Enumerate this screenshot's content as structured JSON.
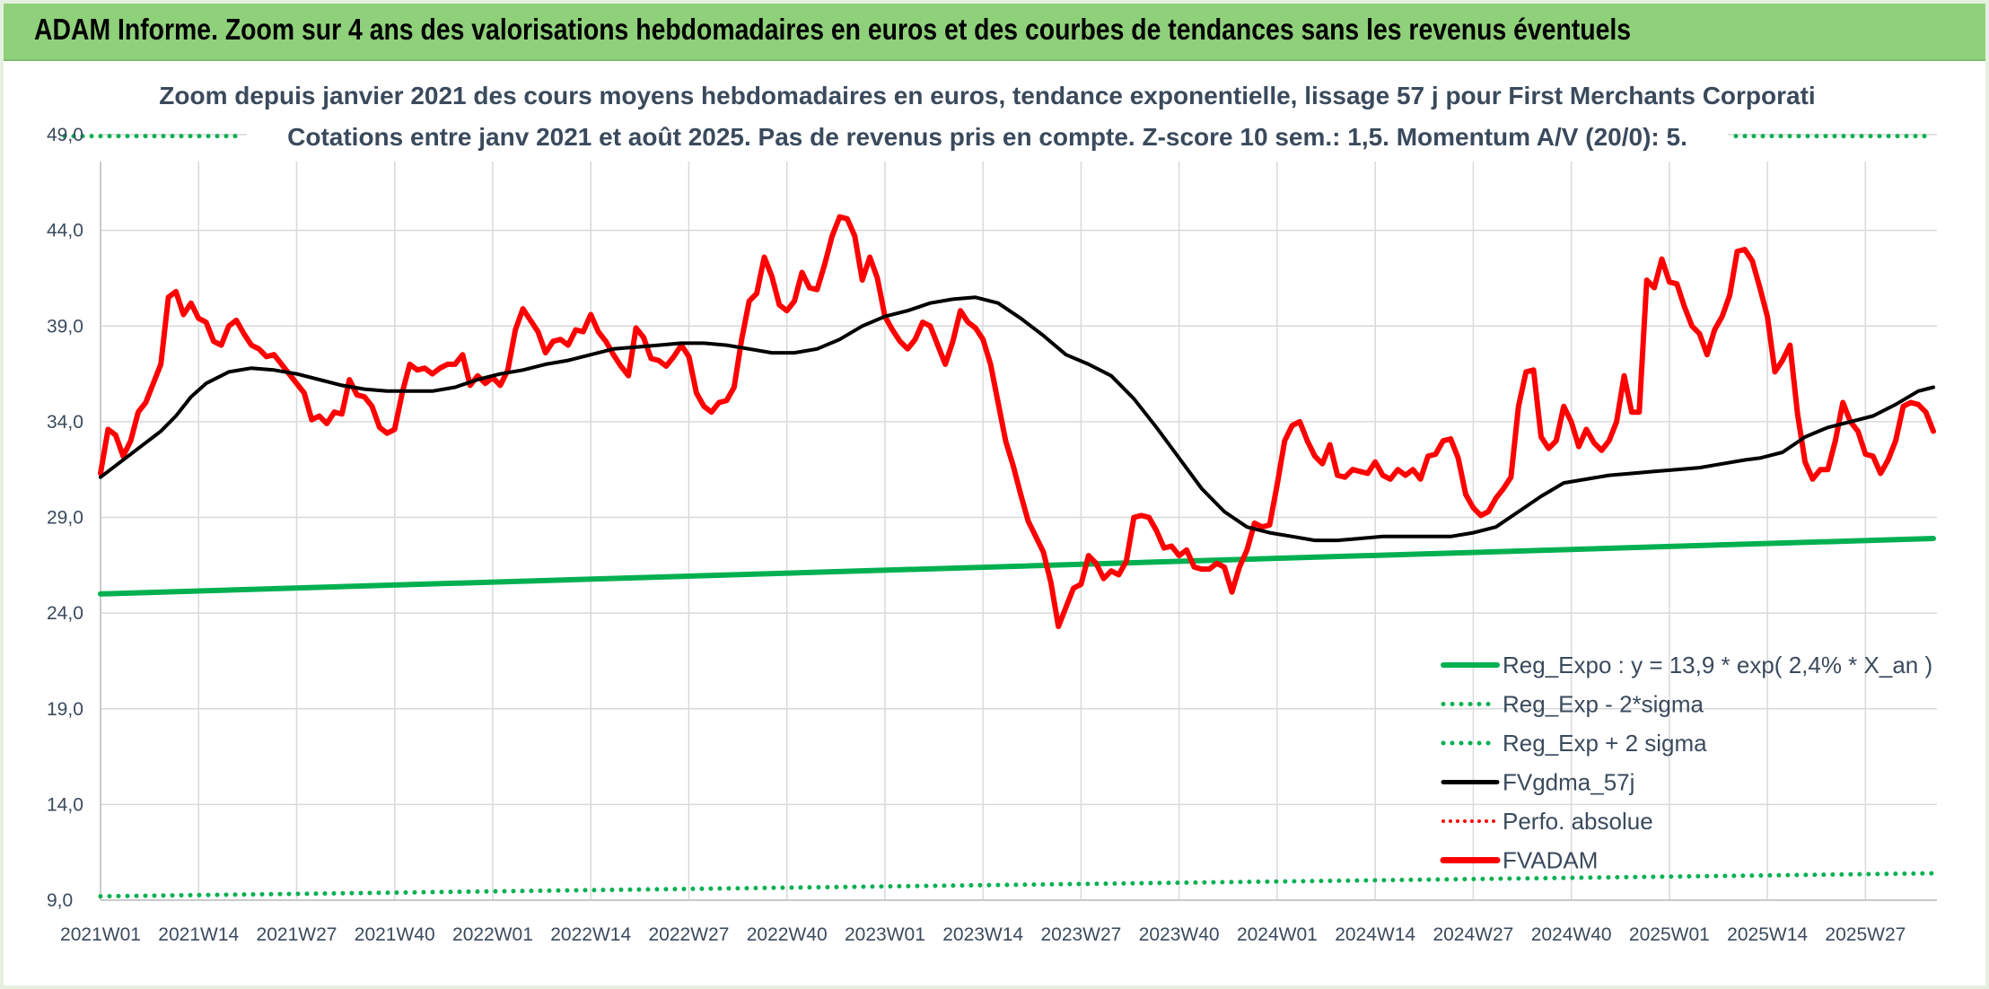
{
  "banner": {
    "title": "ADAM Informe. Zoom sur 4 ans des valorisations hebdomadaires en euros et des courbes de tendances sans les revenus éventuels"
  },
  "chart_data": {
    "type": "line",
    "subtitle_line1": "Zoom depuis janvier 2021 des cours moyens hebdomadaires en euros, tendance exponentielle, lissage 57 j pour First Merchants Corporati",
    "subtitle_line2": "Cotations entre janv 2021 et août 2025. Pas de revenus pris en compte. Z-score 10 sem.: 1,5. Momentum A/V (20/0): 5.",
    "ylim": [
      9,
      51
    ],
    "y_ticks": [
      "9,0",
      "14,0",
      "19,0",
      "24,0",
      "29,0",
      "34,0",
      "39,0",
      "44,0",
      "49,0"
    ],
    "x_ticks": [
      "2021W01",
      "2021W14",
      "2021W27",
      "2021W40",
      "2022W01",
      "2022W14",
      "2022W27",
      "2022W40",
      "2023W01",
      "2023W14",
      "2023W27",
      "2023W40",
      "2024W01",
      "2024W14",
      "2024W27",
      "2024W40",
      "2025W01",
      "2025W14",
      "2025W27"
    ],
    "grid": true,
    "legend_position": "bottom-right",
    "n_weeks": 244,
    "series": [
      {
        "name": "Reg_Expo : y = 13,9 * exp( 2,4% *  X_an )",
        "style": "solid",
        "color": "#00b050",
        "points": [
          [
            0,
            25.0
          ],
          [
            243,
            27.9
          ]
        ]
      },
      {
        "name": "Reg_Exp - 2*sigma",
        "style": "dotted",
        "color": "#00b050",
        "points": [
          [
            0,
            9.2
          ],
          [
            243,
            10.4
          ]
        ]
      },
      {
        "name": "Reg_Exp + 2 sigma",
        "style": "dotted",
        "color": "#00b050",
        "points": [
          [
            0,
            50.0
          ],
          [
            20,
            50.0
          ]
        ]
      },
      {
        "name": "FVgdma_57j",
        "style": "solid",
        "color": "#000000",
        "points": [
          [
            0,
            31.1
          ],
          [
            5,
            32.6
          ],
          [
            8,
            33.5
          ],
          [
            10,
            34.3
          ],
          [
            12,
            35.3
          ],
          [
            14,
            36.0
          ],
          [
            17,
            36.6
          ],
          [
            20,
            36.8
          ],
          [
            23,
            36.7
          ],
          [
            26,
            36.5
          ],
          [
            29,
            36.2
          ],
          [
            32,
            35.9
          ],
          [
            35,
            35.7
          ],
          [
            38,
            35.6
          ],
          [
            41,
            35.6
          ],
          [
            44,
            35.6
          ],
          [
            47,
            35.8
          ],
          [
            50,
            36.2
          ],
          [
            53,
            36.5
          ],
          [
            56,
            36.7
          ],
          [
            59,
            37.0
          ],
          [
            62,
            37.2
          ],
          [
            65,
            37.5
          ],
          [
            68,
            37.8
          ],
          [
            71,
            37.9
          ],
          [
            74,
            38.0
          ],
          [
            77,
            38.1
          ],
          [
            80,
            38.1
          ],
          [
            83,
            38.0
          ],
          [
            86,
            37.8
          ],
          [
            89,
            37.6
          ],
          [
            92,
            37.6
          ],
          [
            95,
            37.8
          ],
          [
            98,
            38.3
          ],
          [
            101,
            39.0
          ],
          [
            104,
            39.5
          ],
          [
            107,
            39.8
          ],
          [
            110,
            40.2
          ],
          [
            113,
            40.4
          ],
          [
            116,
            40.5
          ],
          [
            119,
            40.2
          ],
          [
            122,
            39.4
          ],
          [
            125,
            38.5
          ],
          [
            128,
            37.5
          ],
          [
            131,
            37.0
          ],
          [
            134,
            36.4
          ],
          [
            137,
            35.2
          ],
          [
            140,
            33.7
          ],
          [
            143,
            32.1
          ],
          [
            146,
            30.5
          ],
          [
            149,
            29.3
          ],
          [
            152,
            28.5
          ],
          [
            155,
            28.2
          ],
          [
            158,
            28.0
          ],
          [
            161,
            27.8
          ],
          [
            164,
            27.8
          ],
          [
            167,
            27.9
          ],
          [
            170,
            28.0
          ],
          [
            173,
            28.0
          ],
          [
            176,
            28.0
          ],
          [
            179,
            28.0
          ],
          [
            182,
            28.2
          ],
          [
            185,
            28.5
          ],
          [
            188,
            29.3
          ],
          [
            191,
            30.1
          ],
          [
            194,
            30.8
          ],
          [
            197,
            31.0
          ],
          [
            200,
            31.2
          ],
          [
            203,
            31.3
          ],
          [
            206,
            31.4
          ],
          [
            209,
            31.5
          ],
          [
            212,
            31.6
          ],
          [
            215,
            31.8
          ],
          [
            218,
            32.0
          ],
          [
            220,
            32.1
          ],
          [
            223,
            32.4
          ],
          [
            226,
            33.2
          ],
          [
            229,
            33.7
          ],
          [
            232,
            34.0
          ],
          [
            235,
            34.3
          ],
          [
            238,
            34.9
          ],
          [
            241,
            35.6
          ],
          [
            243,
            35.8
          ]
        ],
        "points_after": [
          [
            0,
            0
          ]
        ]
      },
      {
        "name": "Perfo. absolue",
        "style": "dotted",
        "color": "#ff0000",
        "points": []
      },
      {
        "name": "FVADAM",
        "style": "solid",
        "color": "#ff0000",
        "points": []
      }
    ]
  }
}
